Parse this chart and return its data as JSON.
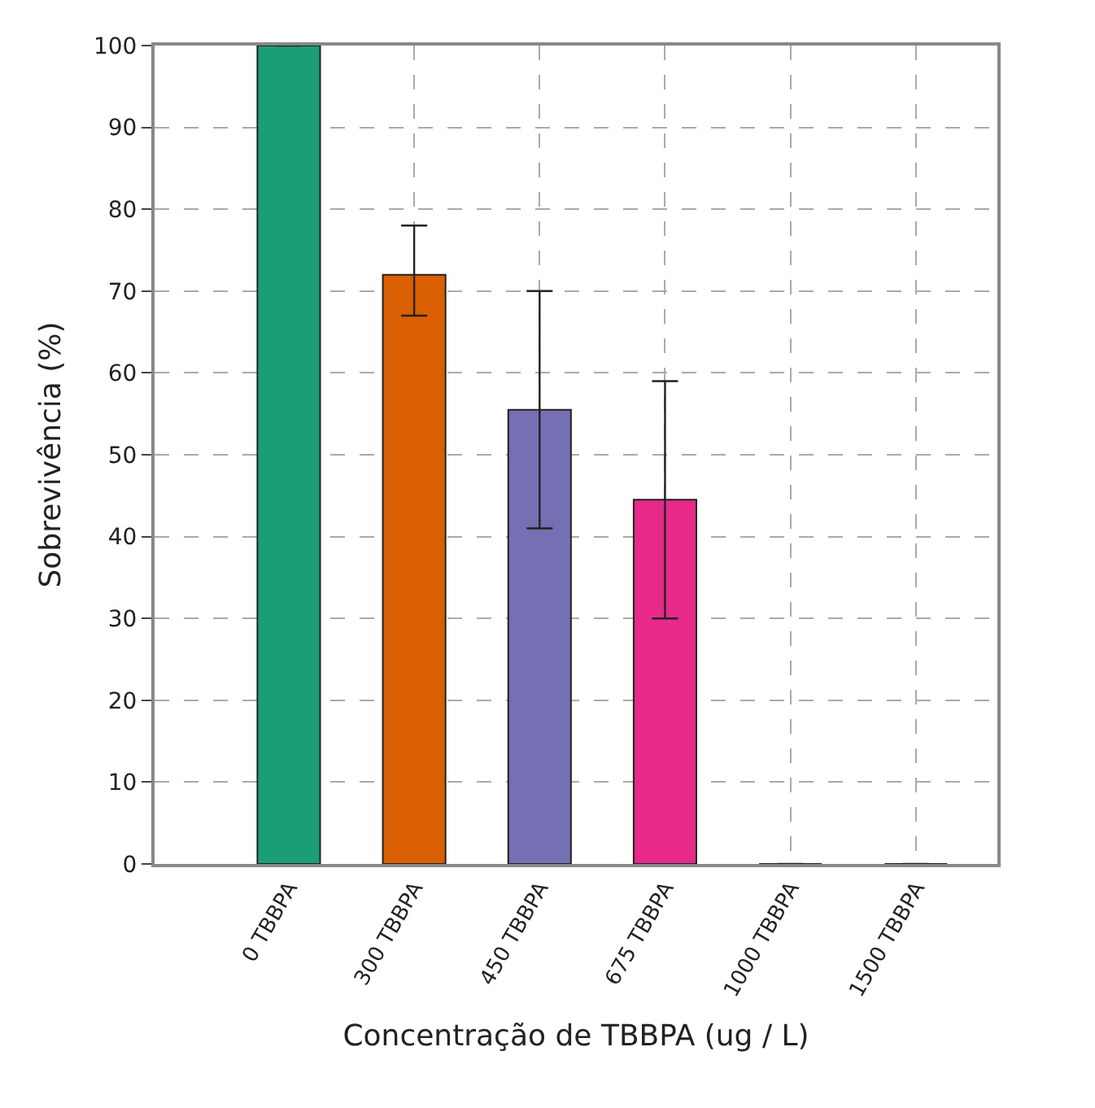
{
  "chart_data": {
    "type": "bar",
    "xlabel": "Concentração de TBBPA (ug / L)",
    "ylabel": "Sobrevivência (%)",
    "categories": [
      "0 TBBPA",
      "300 TBBPA",
      "450 TBBPA",
      "675 TBBPA",
      "1000 TBBPA",
      "1500 TBBPA"
    ],
    "values": [
      100,
      72,
      55.5,
      44.5,
      0,
      0
    ],
    "errors": [
      null,
      [
        67,
        78
      ],
      [
        41,
        70
      ],
      [
        30,
        59
      ],
      null,
      null
    ],
    "colors": [
      "#1b9e77",
      "#d95f02",
      "#7570b3",
      "#e7298a",
      "#222222",
      "#222222"
    ],
    "ylim": [
      0,
      100
    ],
    "yticks": [
      0,
      10,
      20,
      30,
      40,
      50,
      60,
      70,
      80,
      90,
      100
    ],
    "grid": true
  }
}
